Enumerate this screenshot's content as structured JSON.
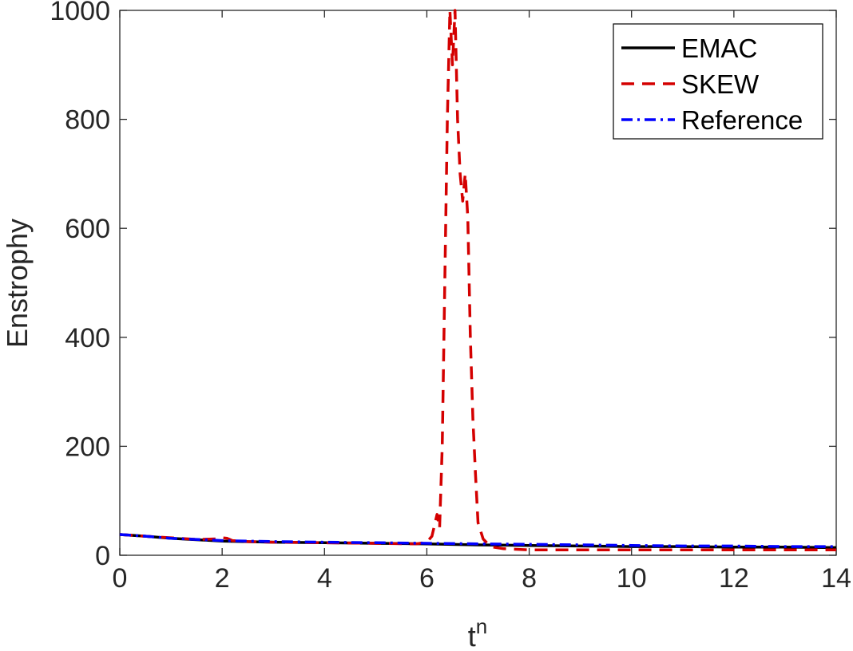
{
  "chart_data": {
    "type": "line",
    "xlabel": "t",
    "xlabel_superscript": "n",
    "ylabel": "Enstrophy",
    "xlim": [
      0,
      14
    ],
    "ylim": [
      0,
      1000
    ],
    "xticks": [
      0,
      2,
      4,
      6,
      8,
      10,
      12,
      14
    ],
    "yticks": [
      0,
      200,
      400,
      600,
      800,
      1000
    ],
    "grid": false,
    "legend_position": "top-right",
    "series": [
      {
        "name": "EMAC",
        "color": "#000000",
        "style": "solid",
        "x": [
          0,
          0.5,
          1,
          2,
          3,
          4,
          5,
          6,
          7,
          8,
          9,
          10,
          11,
          12,
          13,
          14
        ],
        "y": [
          38,
          35,
          31,
          26,
          24,
          23,
          22,
          21,
          19,
          18,
          17,
          16,
          16,
          15,
          15,
          14
        ]
      },
      {
        "name": "SKEW",
        "color": "#d40000",
        "style": "dashed",
        "x": [
          0,
          0.5,
          1,
          1.5,
          1.9,
          2.0,
          2.1,
          2.2,
          2.5,
          3,
          4,
          5,
          5.8,
          6.0,
          6.1,
          6.2,
          6.25,
          6.3,
          6.35,
          6.4,
          6.45,
          6.5,
          6.55,
          6.6,
          6.65,
          6.7,
          6.75,
          6.8,
          6.85,
          6.9,
          6.95,
          7.0,
          7.1,
          7.2,
          7.3,
          7.5,
          8,
          9,
          10,
          11,
          12,
          13,
          14
        ],
        "y": [
          38,
          35,
          32,
          29,
          30,
          32,
          31,
          27,
          25,
          24,
          23,
          22,
          21,
          24,
          35,
          75,
          50,
          200,
          500,
          800,
          1000,
          900,
          1000,
          800,
          700,
          650,
          700,
          620,
          400,
          250,
          150,
          60,
          30,
          20,
          15,
          12,
          10,
          10,
          10,
          10,
          10,
          10,
          10
        ]
      },
      {
        "name": "Reference",
        "color": "#0000ff",
        "style": "dashdot",
        "x": [
          0,
          0.5,
          1,
          2,
          3,
          4,
          5,
          6,
          7,
          8,
          9,
          10,
          11,
          12,
          13,
          14
        ],
        "y": [
          38,
          35,
          31,
          27,
          25,
          24,
          23,
          22,
          21,
          20,
          19,
          18,
          17,
          17,
          16,
          16
        ]
      }
    ]
  }
}
